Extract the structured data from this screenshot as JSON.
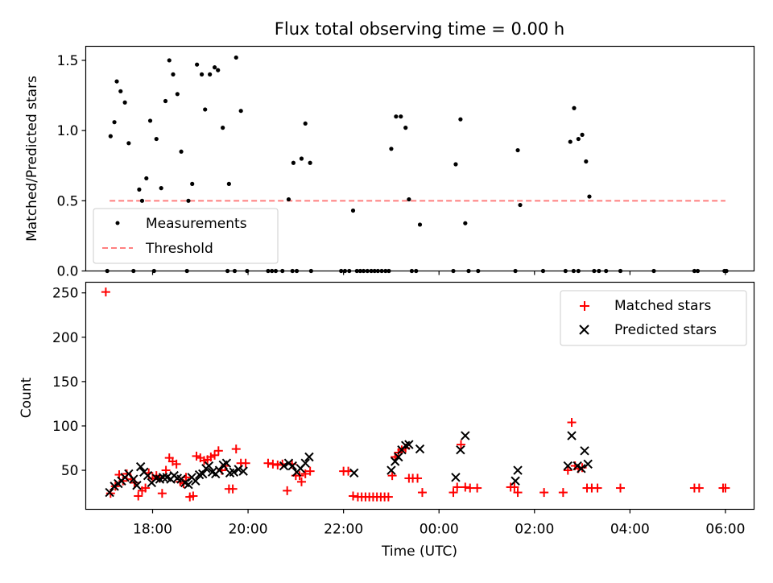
{
  "chart_data": [
    {
      "type": "scatter",
      "title": "Flux total observing time = 0.00 h",
      "xlabel": "",
      "ylabel": "Matched/Predicted stars",
      "xlim": [
        16.6,
        30.6
      ],
      "ylim": [
        0,
        1.6
      ],
      "yticks": [
        0,
        0.5,
        1.0,
        1.5
      ],
      "ytick_labels": [
        "0.0",
        "0.5",
        "1.0",
        "1.5"
      ],
      "legend": {
        "position": "lower-left",
        "entries": [
          "Measurements",
          "Threshold"
        ]
      },
      "threshold": {
        "name": "Threshold",
        "value": 0.5,
        "x_range": [
          17.1,
          30.0
        ],
        "color": "#ff7f7f"
      },
      "series": [
        {
          "name": "Measurements",
          "color": "#000000",
          "points": [
            [
              17.12,
              0.96
            ],
            [
              17.2,
              1.06
            ],
            [
              17.25,
              1.35
            ],
            [
              17.33,
              1.28
            ],
            [
              17.42,
              1.2
            ],
            [
              17.5,
              0.91
            ],
            [
              17.72,
              0.58
            ],
            [
              17.78,
              0.5
            ],
            [
              17.87,
              0.66
            ],
            [
              17.95,
              1.07
            ],
            [
              18.08,
              0.94
            ],
            [
              18.18,
              0.59
            ],
            [
              18.27,
              1.21
            ],
            [
              18.35,
              1.5
            ],
            [
              18.43,
              1.4
            ],
            [
              18.52,
              1.26
            ],
            [
              18.6,
              0.85
            ],
            [
              18.75,
              0.5
            ],
            [
              18.83,
              0.62
            ],
            [
              18.93,
              1.47
            ],
            [
              19.03,
              1.4
            ],
            [
              19.1,
              1.15
            ],
            [
              19.2,
              1.4
            ],
            [
              19.3,
              1.45
            ],
            [
              19.37,
              1.43
            ],
            [
              19.47,
              1.02
            ],
            [
              19.6,
              0.62
            ],
            [
              19.75,
              1.52
            ],
            [
              19.85,
              1.14
            ],
            [
              20.85,
              0.51
            ],
            [
              20.95,
              0.77
            ],
            [
              21.12,
              0.8
            ],
            [
              21.2,
              1.05
            ],
            [
              21.3,
              0.77
            ],
            [
              22.2,
              0.43
            ],
            [
              23.0,
              0.87
            ],
            [
              23.1,
              1.1
            ],
            [
              23.2,
              1.1
            ],
            [
              23.3,
              1.02
            ],
            [
              23.37,
              0.51
            ],
            [
              23.6,
              0.33
            ],
            [
              24.35,
              0.76
            ],
            [
              24.45,
              1.08
            ],
            [
              24.55,
              0.34
            ],
            [
              25.65,
              0.86
            ],
            [
              25.7,
              0.47
            ],
            [
              26.75,
              0.92
            ],
            [
              26.83,
              1.16
            ],
            [
              26.92,
              0.94
            ],
            [
              27.0,
              0.97
            ],
            [
              27.08,
              0.78
            ],
            [
              27.15,
              0.53
            ],
            [
              17.05,
              0
            ],
            [
              17.6,
              0
            ],
            [
              18.03,
              0
            ],
            [
              18.72,
              0
            ],
            [
              19.57,
              0
            ],
            [
              19.72,
              0
            ],
            [
              19.98,
              0
            ],
            [
              20.42,
              0
            ],
            [
              20.5,
              0
            ],
            [
              20.58,
              0
            ],
            [
              20.72,
              0
            ],
            [
              20.93,
              0
            ],
            [
              21.02,
              0
            ],
            [
              21.32,
              0
            ],
            [
              21.95,
              0
            ],
            [
              22.03,
              0
            ],
            [
              22.12,
              0
            ],
            [
              22.28,
              0
            ],
            [
              22.35,
              0
            ],
            [
              22.42,
              0
            ],
            [
              22.5,
              0
            ],
            [
              22.58,
              0
            ],
            [
              22.65,
              0
            ],
            [
              22.72,
              0
            ],
            [
              22.8,
              0
            ],
            [
              22.88,
              0
            ],
            [
              22.95,
              0
            ],
            [
              23.43,
              0
            ],
            [
              23.52,
              0
            ],
            [
              24.3,
              0
            ],
            [
              24.62,
              0
            ],
            [
              24.82,
              0
            ],
            [
              25.6,
              0
            ],
            [
              26.18,
              0
            ],
            [
              26.65,
              0
            ],
            [
              26.82,
              0
            ],
            [
              26.92,
              0
            ],
            [
              27.25,
              0
            ],
            [
              27.35,
              0
            ],
            [
              27.5,
              0
            ],
            [
              27.8,
              0
            ],
            [
              28.5,
              0
            ],
            [
              29.35,
              0
            ],
            [
              29.42,
              0
            ],
            [
              29.98,
              0
            ],
            [
              30.02,
              0
            ]
          ]
        }
      ]
    },
    {
      "type": "scatter",
      "title": "",
      "xlabel": "Time (UTC)",
      "ylabel": "Count",
      "xlim": [
        16.6,
        30.6
      ],
      "ylim": [
        6,
        262
      ],
      "yticks": [
        50,
        100,
        150,
        200,
        250
      ],
      "ytick_labels": [
        "50",
        "100",
        "150",
        "200",
        "250"
      ],
      "xticks": [
        18,
        20,
        22,
        24,
        26,
        28,
        30
      ],
      "xtick_labels": [
        "18:00",
        "20:00",
        "22:00",
        "00:00",
        "02:00",
        "04:00",
        "06:00"
      ],
      "legend": {
        "position": "top-right",
        "entries": [
          "Matched stars",
          "Predicted stars"
        ]
      },
      "series": [
        {
          "name": "Matched stars",
          "marker": "plus",
          "color": "#ff0000",
          "points": [
            [
              17.02,
              251
            ],
            [
              17.12,
              24
            ],
            [
              17.22,
              32
            ],
            [
              17.3,
              45
            ],
            [
              17.38,
              38
            ],
            [
              17.46,
              46
            ],
            [
              17.55,
              40
            ],
            [
              17.62,
              36
            ],
            [
              17.7,
              21
            ],
            [
              17.78,
              27
            ],
            [
              17.85,
              30
            ],
            [
              17.92,
              47
            ],
            [
              18.0,
              41
            ],
            [
              18.08,
              44
            ],
            [
              18.15,
              41
            ],
            [
              18.2,
              24
            ],
            [
              18.28,
              50
            ],
            [
              18.35,
              64
            ],
            [
              18.42,
              60
            ],
            [
              18.5,
              57
            ],
            [
              18.58,
              37
            ],
            [
              18.65,
              35
            ],
            [
              18.7,
              42
            ],
            [
              18.78,
              20
            ],
            [
              18.85,
              21
            ],
            [
              18.92,
              66
            ],
            [
              19.0,
              64
            ],
            [
              19.08,
              61
            ],
            [
              19.15,
              62
            ],
            [
              19.22,
              65
            ],
            [
              19.3,
              67
            ],
            [
              19.38,
              72
            ],
            [
              19.45,
              50
            ],
            [
              19.52,
              55
            ],
            [
              19.6,
              29
            ],
            [
              19.68,
              29
            ],
            [
              19.75,
              74
            ],
            [
              19.85,
              58
            ],
            [
              19.95,
              58
            ],
            [
              20.42,
              58
            ],
            [
              20.52,
              57
            ],
            [
              20.62,
              56
            ],
            [
              20.72,
              57
            ],
            [
              20.82,
              27
            ],
            [
              20.92,
              57
            ],
            [
              21.0,
              44
            ],
            [
              21.08,
              44
            ],
            [
              21.12,
              37
            ],
            [
              21.2,
              46
            ],
            [
              21.3,
              49
            ],
            [
              22.0,
              49
            ],
            [
              22.1,
              49
            ],
            [
              22.2,
              21
            ],
            [
              22.3,
              20
            ],
            [
              22.38,
              20
            ],
            [
              22.46,
              20
            ],
            [
              22.54,
              20
            ],
            [
              22.62,
              20
            ],
            [
              22.7,
              20
            ],
            [
              22.78,
              20
            ],
            [
              22.86,
              20
            ],
            [
              22.94,
              20
            ],
            [
              23.02,
              44
            ],
            [
              23.08,
              65
            ],
            [
              23.15,
              70
            ],
            [
              23.22,
              73
            ],
            [
              23.3,
              75
            ],
            [
              23.37,
              41
            ],
            [
              23.45,
              41
            ],
            [
              23.55,
              41
            ],
            [
              23.65,
              25
            ],
            [
              24.3,
              25
            ],
            [
              24.38,
              31
            ],
            [
              24.46,
              79
            ],
            [
              24.55,
              31
            ],
            [
              24.65,
              30
            ],
            [
              24.8,
              30
            ],
            [
              25.5,
              31
            ],
            [
              25.58,
              31
            ],
            [
              25.65,
              25
            ],
            [
              26.2,
              25
            ],
            [
              26.6,
              25
            ],
            [
              26.7,
              50
            ],
            [
              26.78,
              104
            ],
            [
              26.85,
              55
            ],
            [
              26.92,
              52
            ],
            [
              27.0,
              53
            ],
            [
              27.1,
              30
            ],
            [
              27.2,
              30
            ],
            [
              27.32,
              30
            ],
            [
              27.8,
              30
            ],
            [
              29.35,
              30
            ],
            [
              29.45,
              30
            ],
            [
              29.95,
              30
            ],
            [
              30.0,
              30
            ]
          ]
        },
        {
          "name": "Predicted stars",
          "marker": "x",
          "color": "#000000",
          "points": [
            [
              17.1,
              25
            ],
            [
              17.2,
              32
            ],
            [
              17.28,
              35
            ],
            [
              17.35,
              38
            ],
            [
              17.42,
              42
            ],
            [
              17.5,
              46
            ],
            [
              17.6,
              40
            ],
            [
              17.67,
              33
            ],
            [
              17.75,
              54
            ],
            [
              17.82,
              48
            ],
            [
              17.9,
              44
            ],
            [
              17.98,
              36
            ],
            [
              18.08,
              41
            ],
            [
              18.15,
              40
            ],
            [
              18.22,
              42
            ],
            [
              18.3,
              42
            ],
            [
              18.38,
              40
            ],
            [
              18.45,
              44
            ],
            [
              18.52,
              41
            ],
            [
              18.6,
              40
            ],
            [
              18.68,
              36
            ],
            [
              18.75,
              34
            ],
            [
              18.82,
              42
            ],
            [
              18.9,
              38
            ],
            [
              18.98,
              45
            ],
            [
              19.05,
              46
            ],
            [
              19.12,
              52
            ],
            [
              19.18,
              55
            ],
            [
              19.25,
              48
            ],
            [
              19.32,
              46
            ],
            [
              19.4,
              50
            ],
            [
              19.48,
              56
            ],
            [
              19.55,
              58
            ],
            [
              19.62,
              47
            ],
            [
              19.7,
              48
            ],
            [
              19.8,
              51
            ],
            [
              19.9,
              49
            ],
            [
              20.75,
              55
            ],
            [
              20.85,
              58
            ],
            [
              20.93,
              55
            ],
            [
              21.02,
              48
            ],
            [
              21.1,
              52
            ],
            [
              21.2,
              58
            ],
            [
              21.28,
              65
            ],
            [
              22.22,
              47
            ],
            [
              23.0,
              50
            ],
            [
              23.08,
              60
            ],
            [
              23.15,
              65
            ],
            [
              23.22,
              73
            ],
            [
              23.3,
              78
            ],
            [
              23.37,
              79
            ],
            [
              23.6,
              74
            ],
            [
              24.35,
              42
            ],
            [
              24.45,
              73
            ],
            [
              24.55,
              89
            ],
            [
              25.6,
              38
            ],
            [
              25.65,
              50
            ],
            [
              26.7,
              55
            ],
            [
              26.78,
              89
            ],
            [
              26.9,
              55
            ],
            [
              26.98,
              52
            ],
            [
              27.05,
              72
            ],
            [
              27.12,
              57
            ]
          ]
        }
      ]
    }
  ]
}
